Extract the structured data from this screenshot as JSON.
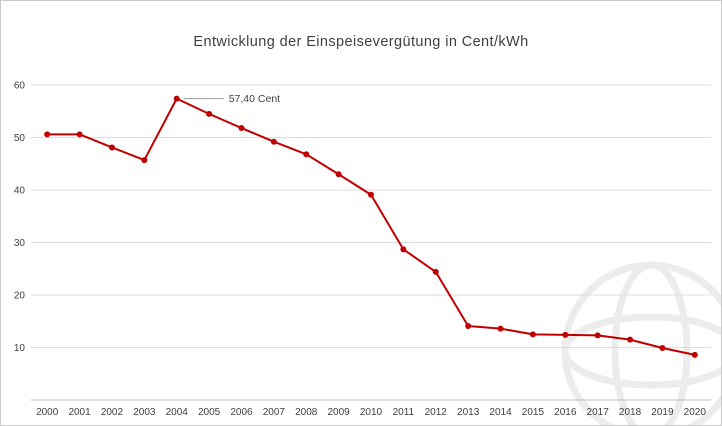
{
  "title": "Entwicklung der Einspeisevergütung in Cent/kWh",
  "annotation": {
    "text": "57,40 Cent",
    "year": "2004"
  },
  "chart_data": {
    "type": "line",
    "title": "Entwicklung der Einspeisevergütung in Cent/kWh",
    "xlabel": "",
    "ylabel": "",
    "categories": [
      "2000",
      "2001",
      "2002",
      "2003",
      "2004",
      "2005",
      "2006",
      "2007",
      "2008",
      "2009",
      "2010",
      "2011",
      "2012",
      "2013",
      "2014",
      "2015",
      "2016",
      "2017",
      "2018",
      "2019",
      "2020"
    ],
    "values": [
      50.6,
      50.6,
      48.1,
      45.7,
      57.4,
      54.5,
      51.8,
      49.2,
      46.8,
      43.0,
      39.1,
      28.7,
      24.4,
      14.1,
      13.6,
      12.5,
      12.4,
      12.3,
      11.5,
      9.9,
      8.6
    ],
    "ylim": [
      0,
      60
    ],
    "yticks": [
      10,
      20,
      30,
      40,
      50,
      60
    ],
    "grid": true,
    "legend": "none",
    "line_color": "#c00000",
    "marker_color": "#c00000",
    "grid_color": "#dcdcdc",
    "axis_color": "#bfbfbf",
    "axis_text_color": "#404040",
    "annotation_line_color": "#9e9e9e",
    "title_color": "#3f3f3f",
    "watermark_color": "#ececec",
    "background_color": "#ffffff"
  }
}
